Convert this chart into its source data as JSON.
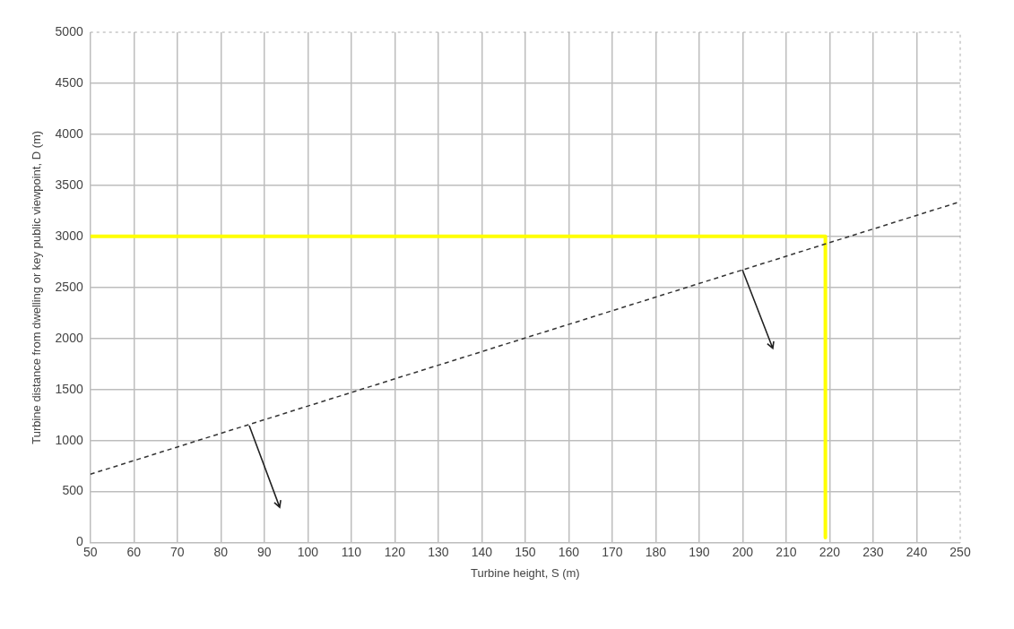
{
  "chart_data": {
    "type": "line",
    "xlabel": "Turbine height, S (m)",
    "ylabel": "Turbine distance from dwelling or key public viewpoint, D (m)",
    "xlim": [
      50,
      250
    ],
    "xticks": [
      50,
      60,
      70,
      80,
      90,
      100,
      110,
      120,
      130,
      140,
      150,
      160,
      170,
      180,
      190,
      200,
      210,
      220,
      230,
      240,
      250
    ],
    "ylim": [
      0,
      5000
    ],
    "yticks": [
      0,
      500,
      1000,
      1500,
      2000,
      2500,
      3000,
      3500,
      4000,
      4500,
      5000
    ],
    "grid": true,
    "marker": "none",
    "series": [
      {
        "color": "#333333",
        "line_style": "dashed",
        "x": [
          50,
          250
        ],
        "values": [
          670,
          3340
        ]
      },
      {
        "color": "#ffff00",
        "line_style": "solid",
        "x": [
          50,
          219,
          219
        ],
        "values": [
          3000,
          3000,
          50
        ]
      }
    ]
  }
}
